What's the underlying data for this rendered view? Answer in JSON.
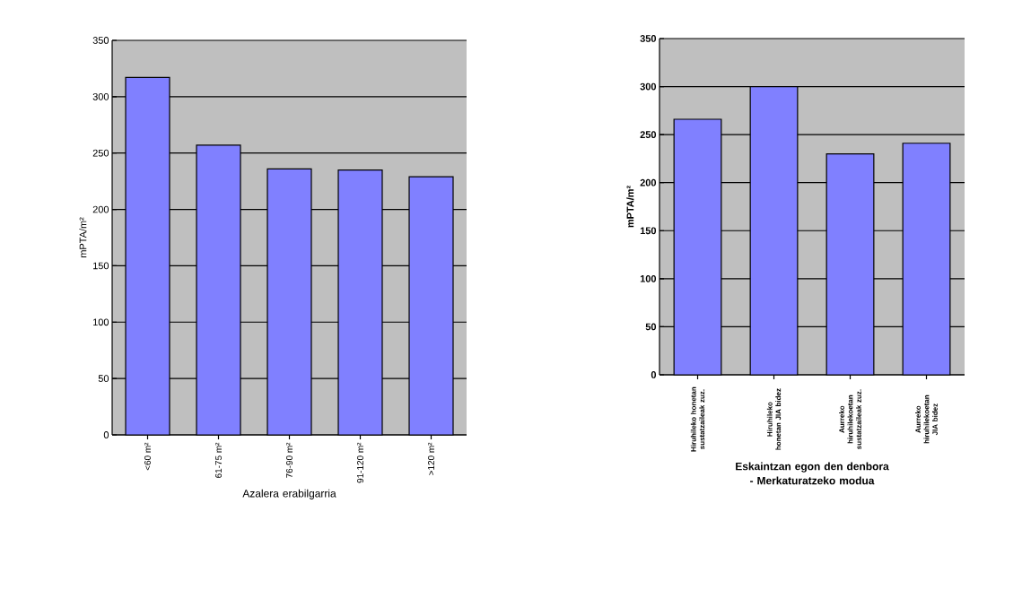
{
  "chart_data": [
    {
      "type": "bar",
      "xlabel": "Azalera erabilgarria",
      "ylabel": "mPTA/m²",
      "categories": [
        "<60 m²",
        "61-75 m²",
        "76-90 m²",
        "91-120 m²",
        ">120 m²"
      ],
      "values": [
        317,
        257,
        236,
        235,
        229
      ],
      "color": "#8080ff",
      "ylim": [
        0,
        350
      ],
      "yticks": [
        0,
        50,
        100,
        150,
        200,
        250,
        300,
        350
      ],
      "grid": "y"
    },
    {
      "type": "bar",
      "xlabel": "Eskaintzan egon den denbora - Merkaturatzeko modua",
      "ylabel": "mPTA/m²",
      "categories": [
        "Hiruhileko honetan sustatzaileak zuz.",
        "Hiruhileko honetan JIA bidez",
        "Aurreko hiruhilekoetan sustatzaileak zuz.",
        "Aurreko hiruhilekoetan JIA bidez"
      ],
      "values": [
        266,
        300,
        230,
        241
      ],
      "color": "#8080ff",
      "ylim": [
        0,
        350
      ],
      "yticks": [
        0,
        50,
        100,
        150,
        200,
        250,
        300,
        350
      ],
      "grid": "y"
    }
  ]
}
